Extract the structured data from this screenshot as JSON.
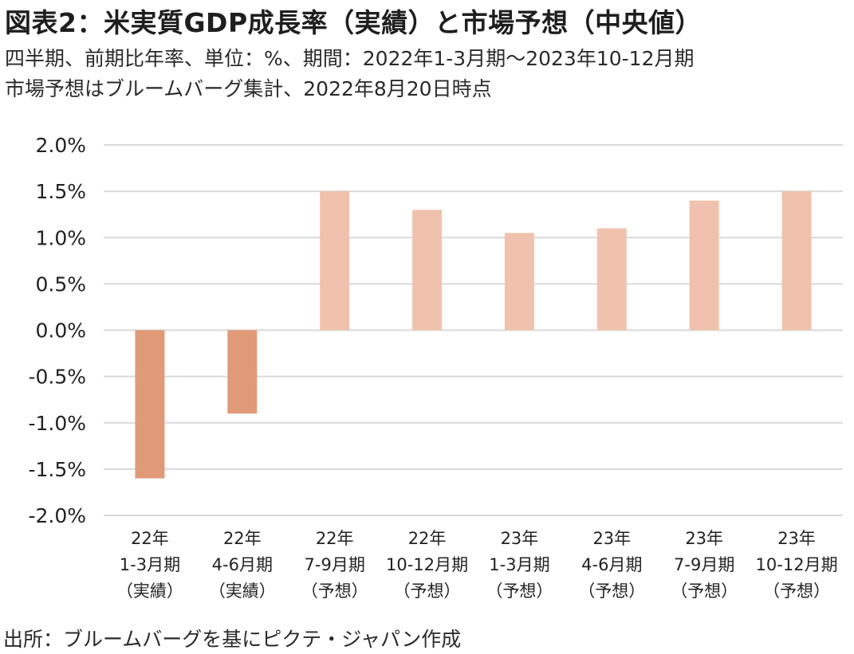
{
  "title": "図表2：米実質GDP成長率（実績）と市場予想（中央値）",
  "subtitle_lines": [
    "四半期、前期比年率、単位：%、期間：2022年1-3月期～2023年10-12月期",
    "市場予想はブルームバーグ集計、2022年8月20日時点"
  ],
  "source": "出所：ブルームバーグを基にピクテ・ジャパン作成",
  "colors": {
    "actual": "#e09a78",
    "forecast": "#f0c2ad",
    "gridline": "#d9d9d9",
    "text": "#222222"
  },
  "chart_data": {
    "type": "bar",
    "categories": [
      [
        "22年",
        "1-3月期",
        "（実績）"
      ],
      [
        "22年",
        "4-6月期",
        "（実績）"
      ],
      [
        "22年",
        "7-9月期",
        "（予想）"
      ],
      [
        "22年",
        "10-12月期",
        "（予想）"
      ],
      [
        "23年",
        "1-3月期",
        "（予想）"
      ],
      [
        "23年",
        "4-6月期",
        "（予想）"
      ],
      [
        "23年",
        "7-9月期",
        "（予想）"
      ],
      [
        "23年",
        "10-12月期",
        "（予想）"
      ]
    ],
    "values": [
      -1.6,
      -0.9,
      1.5,
      1.3,
      1.05,
      1.1,
      1.4,
      1.5
    ],
    "kinds": [
      "actual",
      "actual",
      "forecast",
      "forecast",
      "forecast",
      "forecast",
      "forecast",
      "forecast"
    ],
    "ylim": [
      -2.0,
      2.0
    ],
    "yticks": [
      2.0,
      1.5,
      1.0,
      0.5,
      0.0,
      -0.5,
      -1.0,
      -1.5,
      -2.0
    ],
    "ytick_labels": [
      "2.0%",
      "1.5%",
      "1.0%",
      "0.5%",
      "0.0%",
      "-0.5%",
      "-1.0%",
      "-1.5%",
      "-2.0%"
    ],
    "grid": true,
    "legend": "none"
  }
}
